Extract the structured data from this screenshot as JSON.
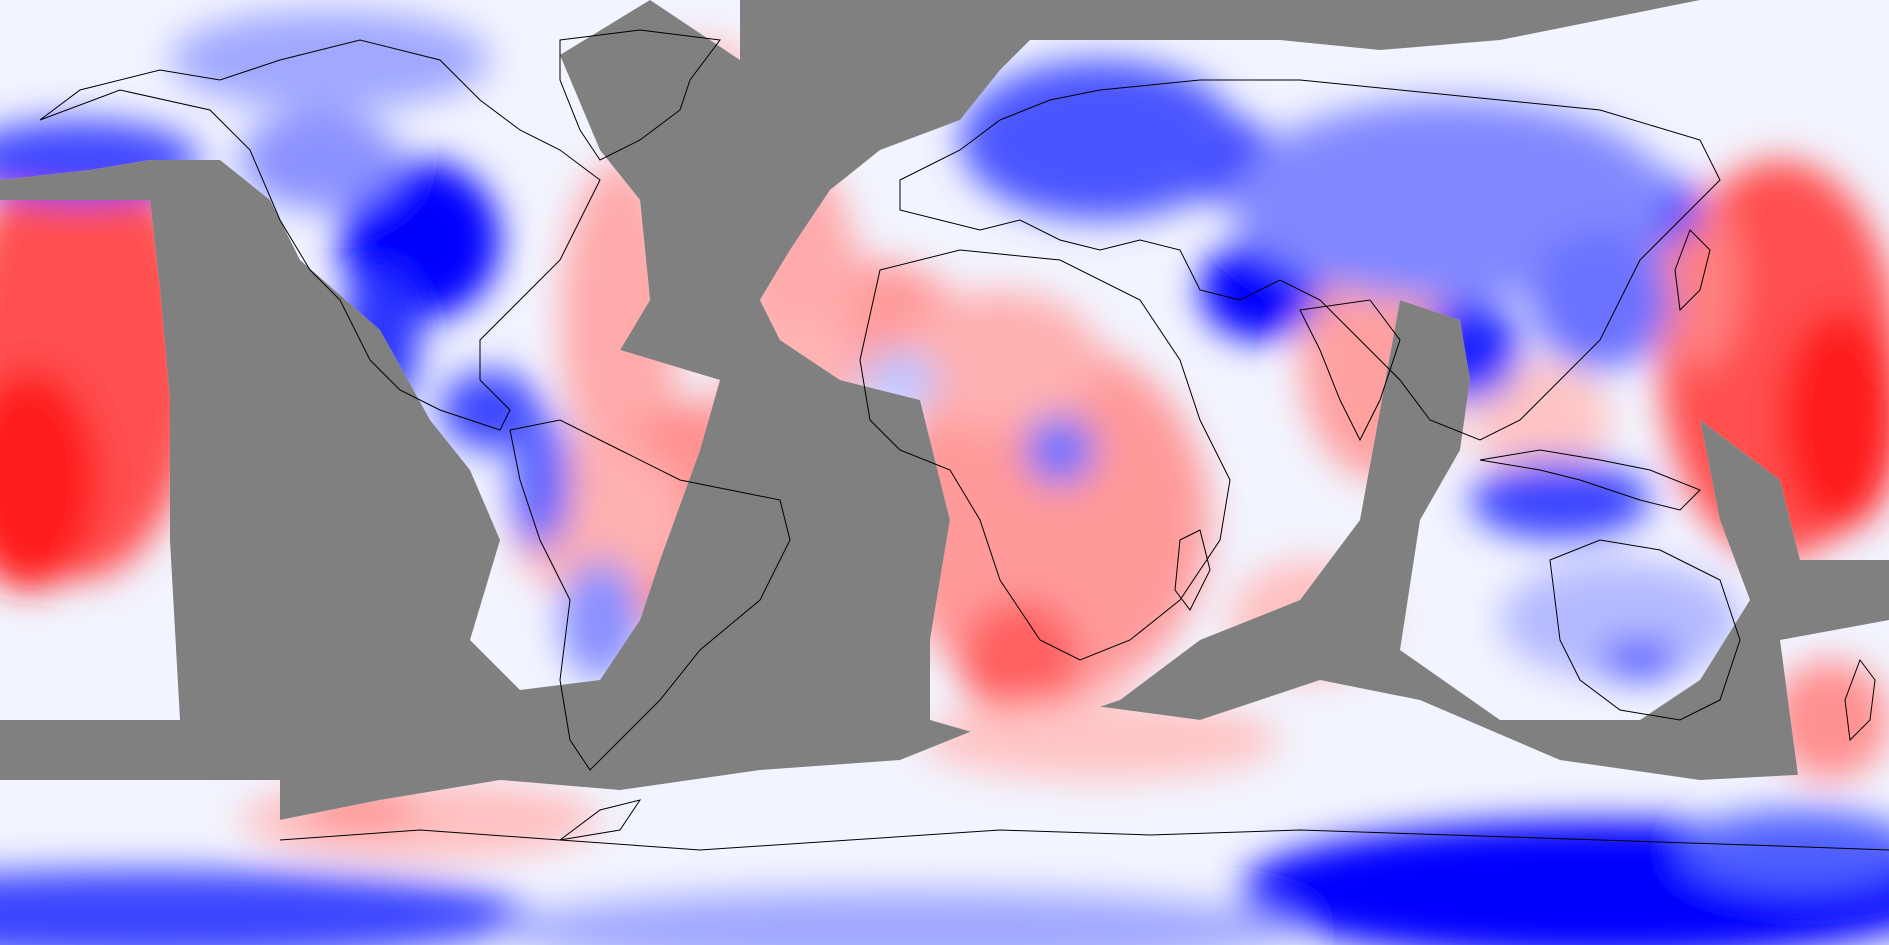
{
  "map": {
    "projection": "equirectangular",
    "lon_range": [
      -180,
      180
    ],
    "lat_range": [
      -90,
      90
    ],
    "field": "anomaly",
    "missing_color": "#808080",
    "colors": {
      "strong_negative": "#0000ff",
      "moderate_negative": "#6670ff",
      "weak_negative": "#c8ccff",
      "neutral": "#f2f4ff",
      "weak_positive": "#ffd0d0",
      "moderate_positive": "#ff9a9a",
      "strong_positive": "#ff2020",
      "coastline": "#000000"
    },
    "legend": "none",
    "grid": false
  }
}
